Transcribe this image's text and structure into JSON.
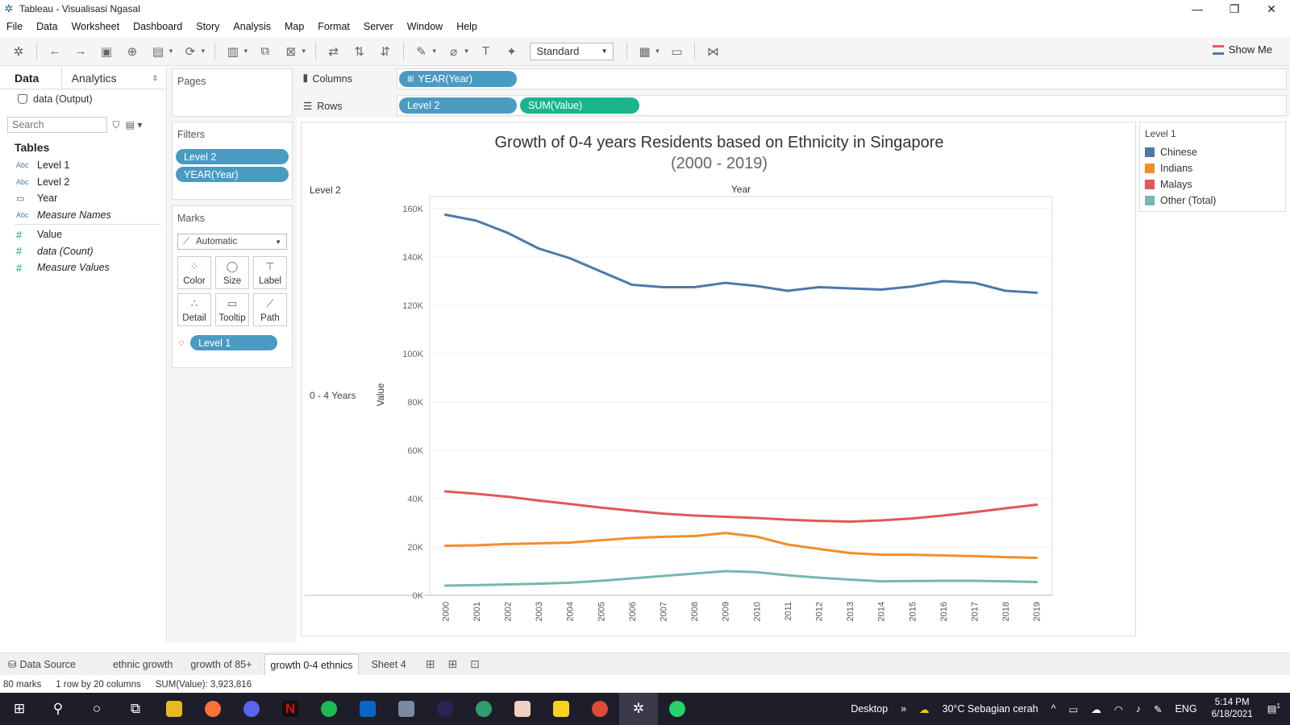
{
  "window": {
    "title": "Tableau - Visualisasi Ngasal"
  },
  "menu": [
    "File",
    "Data",
    "Worksheet",
    "Dashboard",
    "Story",
    "Analysis",
    "Map",
    "Format",
    "Server",
    "Window",
    "Help"
  ],
  "toolbar": {
    "fit_select": "Standard",
    "show_me": "Show Me"
  },
  "data_pane": {
    "tab_data": "Data",
    "tab_analytics": "Analytics",
    "datasource": "data (Output)",
    "search_placeholder": "Search",
    "tables_label": "Tables",
    "dimensions": [
      {
        "type": "Abc",
        "name": "Level 1"
      },
      {
        "type": "Abc",
        "name": "Level 2"
      },
      {
        "type": "date",
        "name": "Year"
      },
      {
        "type": "Abc",
        "name": "Measure Names"
      }
    ],
    "measures": [
      {
        "type": "#",
        "name": "Value"
      },
      {
        "type": "#",
        "name": "data (Count)"
      },
      {
        "type": "#",
        "name": "Measure Values"
      }
    ]
  },
  "cards": {
    "pages": "Pages",
    "filters": "Filters",
    "filter_pills": [
      "Level 2",
      "YEAR(Year)"
    ],
    "marks": "Marks",
    "mark_type": "Automatic",
    "mark_buttons": [
      "Color",
      "Size",
      "Label",
      "Detail",
      "Tooltip",
      "Path"
    ],
    "color_pill": "Level 1"
  },
  "shelves": {
    "columns_label": "Columns",
    "columns_pill": "YEAR(Year)",
    "rows_label": "Rows",
    "rows_pills": [
      "Level 2",
      "SUM(Value)"
    ]
  },
  "legend": {
    "title": "Level 1",
    "items": [
      {
        "name": "Chinese",
        "color": "#4e79a7"
      },
      {
        "name": "Indians",
        "color": "#f28e2b"
      },
      {
        "name": "Malays",
        "color": "#e15759"
      },
      {
        "name": "Other (Total)",
        "color": "#76b7b2"
      }
    ]
  },
  "chart_data": {
    "type": "line",
    "title": "Growth of 0-4 years Residents based on Ethnicity in Singapore",
    "subtitle": "(2000 - 2019)",
    "row_header": "Level 2",
    "row_value": "0 - 4 Years",
    "xlabel": "Year",
    "ylabel": "Value",
    "ylim": [
      0,
      165000
    ],
    "yticks": [
      0,
      20000,
      40000,
      60000,
      80000,
      100000,
      120000,
      140000,
      160000
    ],
    "ytick_labels": [
      "0K",
      "20K",
      "40K",
      "60K",
      "80K",
      "100K",
      "120K",
      "140K",
      "160K"
    ],
    "x": [
      "2000",
      "2001",
      "2002",
      "2003",
      "2004",
      "2005",
      "2006",
      "2007",
      "2008",
      "2009",
      "2010",
      "2011",
      "2012",
      "2013",
      "2014",
      "2015",
      "2016",
      "2017",
      "2018",
      "2019"
    ],
    "series": [
      {
        "name": "Chinese",
        "color": "#4e79a7",
        "values": [
          157500,
          155000,
          150000,
          143500,
          139500,
          134000,
          128500,
          127500,
          127500,
          129300,
          128000,
          126000,
          127500,
          127000,
          126500,
          127800,
          130000,
          129300,
          126000,
          125200
        ]
      },
      {
        "name": "Indians",
        "color": "#f28e2b",
        "values": [
          20500,
          20700,
          21200,
          21500,
          21800,
          22800,
          23700,
          24200,
          24500,
          25800,
          24300,
          21000,
          19200,
          17500,
          16800,
          16800,
          16500,
          16200,
          15800,
          15500
        ]
      },
      {
        "name": "Malays",
        "color": "#e15759",
        "values": [
          43000,
          42000,
          40800,
          39200,
          37800,
          36300,
          35000,
          33800,
          33000,
          32500,
          32000,
          31300,
          30800,
          30500,
          31000,
          31800,
          33000,
          34400,
          36000,
          37500
        ]
      },
      {
        "name": "Other (Total)",
        "color": "#76b7b2",
        "values": [
          4000,
          4200,
          4500,
          4800,
          5200,
          6000,
          7000,
          8000,
          9000,
          10000,
          9600,
          8300,
          7300,
          6500,
          5800,
          5900,
          6000,
          6000,
          5800,
          5500
        ]
      }
    ]
  },
  "sheet_tabs": {
    "datasource": "Data Source",
    "sheets": [
      "ethnic growth",
      "growth of 85+",
      "growth 0-4 ethnics",
      "Sheet 4"
    ],
    "active": 2
  },
  "status": {
    "marks": "80 marks",
    "dims": "1 row by 20 columns",
    "sum": "SUM(Value): 3,923,816"
  },
  "taskbar": {
    "desktop_label": "Desktop",
    "weather": "30°C  Sebagian cerah",
    "lang": "ENG",
    "time": "5:14 PM",
    "date": "6/18/2021",
    "notification_count": "1"
  }
}
